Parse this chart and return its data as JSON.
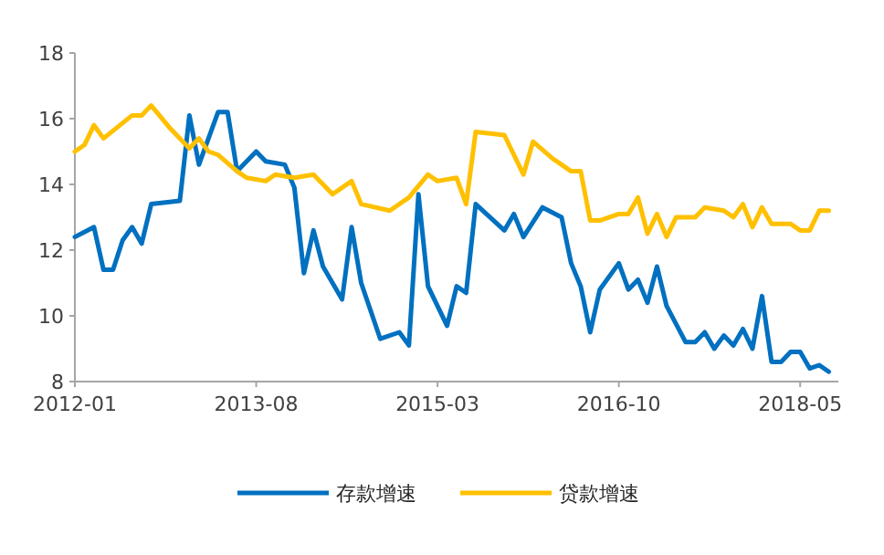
{
  "chart_data": {
    "type": "line",
    "legend": "bottom",
    "grid": false,
    "line_style": "solid",
    "xlim": [
      "2012-01",
      "2018-09"
    ],
    "xticks": [
      "2012-01",
      "2013-08",
      "2015-03",
      "2016-10",
      "2018-05"
    ],
    "ylim": [
      8,
      18
    ],
    "yticks": [
      8,
      10,
      12,
      14,
      16,
      18
    ],
    "series": [
      {
        "name": "存款增速",
        "color": "#0070c0",
        "x": [
          "2012-01",
          "2012-03",
          "2012-04",
          "2012-05",
          "2012-06",
          "2012-07",
          "2012-08",
          "2012-09",
          "2012-12",
          "2013-01",
          "2013-02",
          "2013-03",
          "2013-04",
          "2013-05",
          "2013-06",
          "2013-08",
          "2013-09",
          "2013-11",
          "2013-12",
          "2014-01",
          "2014-02",
          "2014-03",
          "2014-05",
          "2014-06",
          "2014-07",
          "2014-09",
          "2014-11",
          "2014-12",
          "2015-01",
          "2015-02",
          "2015-04",
          "2015-05",
          "2015-06",
          "2015-07",
          "2015-10",
          "2015-11",
          "2015-12",
          "2016-02",
          "2016-04",
          "2016-05",
          "2016-06",
          "2016-07",
          "2016-08",
          "2016-10",
          "2016-11",
          "2016-12",
          "2017-01",
          "2017-02",
          "2017-03",
          "2017-05",
          "2017-06",
          "2017-07",
          "2017-08",
          "2017-09",
          "2017-10",
          "2017-11",
          "2017-12",
          "2018-01",
          "2018-02",
          "2018-03",
          "2018-04",
          "2018-05",
          "2018-06",
          "2018-07",
          "2018-08"
        ],
        "values": [
          12.4,
          12.7,
          11.4,
          11.4,
          12.3,
          12.7,
          12.2,
          13.4,
          13.5,
          16.1,
          14.6,
          15.4,
          16.2,
          16.2,
          14.4,
          15.0,
          14.7,
          14.6,
          13.9,
          11.3,
          12.6,
          11.5,
          10.5,
          12.7,
          11.0,
          9.3,
          9.5,
          9.1,
          13.7,
          10.9,
          9.7,
          10.9,
          10.7,
          13.4,
          12.6,
          13.1,
          12.4,
          13.3,
          13.0,
          11.6,
          10.9,
          9.5,
          10.8,
          11.6,
          10.8,
          11.1,
          10.4,
          11.5,
          10.3,
          9.2,
          9.2,
          9.5,
          9.0,
          9.4,
          9.1,
          9.6,
          9.0,
          10.6,
          8.6,
          8.6,
          8.9,
          8.9,
          8.4,
          8.5,
          8.3
        ]
      },
      {
        "name": "贷款增速",
        "color": "#ffc000",
        "x": [
          "2012-01",
          "2012-02",
          "2012-03",
          "2012-04",
          "2012-07",
          "2012-08",
          "2012-09",
          "2012-11",
          "2013-01",
          "2013-02",
          "2013-03",
          "2013-04",
          "2013-06",
          "2013-07",
          "2013-09",
          "2013-10",
          "2013-12",
          "2014-02",
          "2014-04",
          "2014-06",
          "2014-07",
          "2014-10",
          "2014-12",
          "2015-02",
          "2015-03",
          "2015-05",
          "2015-06",
          "2015-07",
          "2015-10",
          "2015-12",
          "2016-01",
          "2016-03",
          "2016-04",
          "2016-05",
          "2016-06",
          "2016-07",
          "2016-08",
          "2016-10",
          "2016-11",
          "2016-12",
          "2017-01",
          "2017-02",
          "2017-03",
          "2017-04",
          "2017-06",
          "2017-07",
          "2017-09",
          "2017-10",
          "2017-11",
          "2017-12",
          "2018-01",
          "2018-02",
          "2018-04",
          "2018-05",
          "2018-06",
          "2018-07",
          "2018-08"
        ],
        "values": [
          15.0,
          15.2,
          15.8,
          15.4,
          16.1,
          16.1,
          16.4,
          15.7,
          15.1,
          15.4,
          15.0,
          14.9,
          14.4,
          14.2,
          14.1,
          14.3,
          14.2,
          14.3,
          13.7,
          14.1,
          13.4,
          13.2,
          13.6,
          14.3,
          14.1,
          14.2,
          13.4,
          15.6,
          15.5,
          14.3,
          15.3,
          14.8,
          14.6,
          14.4,
          14.4,
          12.9,
          12.9,
          13.1,
          13.1,
          13.6,
          12.5,
          13.1,
          12.4,
          13.0,
          13.0,
          13.3,
          13.2,
          13.0,
          13.4,
          12.7,
          13.3,
          12.8,
          12.8,
          12.6,
          12.6,
          13.2,
          13.2
        ]
      }
    ]
  }
}
